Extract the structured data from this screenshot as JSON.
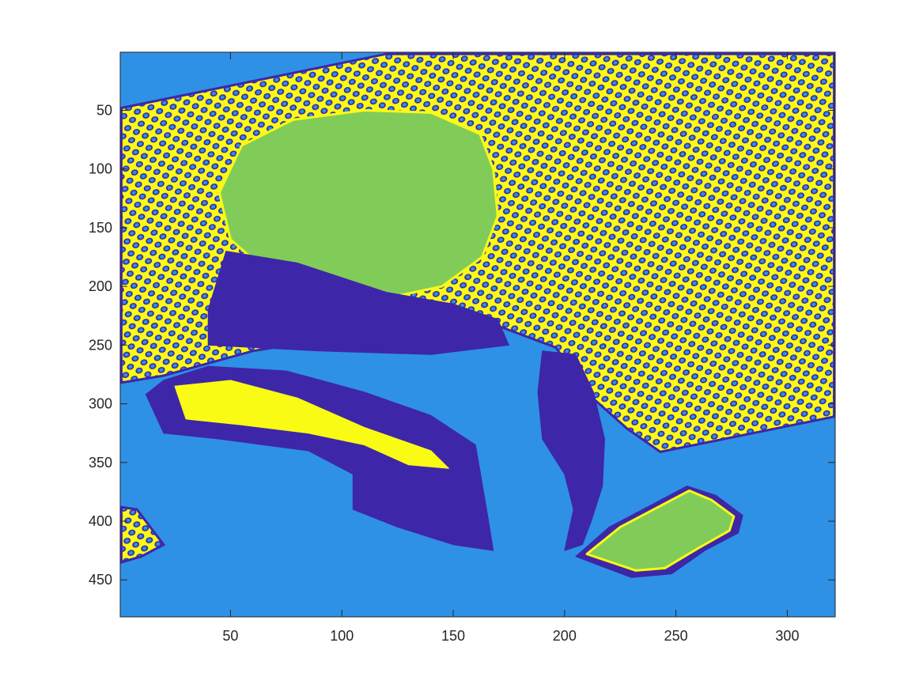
{
  "chart_data": {
    "type": "heatmap",
    "title": "",
    "xlabel": "",
    "ylabel": "",
    "xlim": [
      0.5,
      321.5
    ],
    "ylim": [
      0.5,
      481.5
    ],
    "y_direction": "reversed",
    "grid": false,
    "legend": "none",
    "xticks": [
      50,
      100,
      150,
      200,
      250,
      300
    ],
    "yticks": [
      50,
      100,
      150,
      200,
      250,
      300,
      350,
      400,
      450
    ],
    "colormap": {
      "level_1": "#3e26a8",
      "level_2": "#2e91e5",
      "level_3": "#81cc58",
      "level_4": "#f9fb15"
    },
    "regions": [
      {
        "name": "checkerboard-upper",
        "pattern": "dotted-yellow-blue",
        "polygon": [
          [
            1,
            48
          ],
          [
            120,
            2
          ],
          [
            321,
            2
          ],
          [
            321,
            311
          ],
          [
            243,
            341
          ],
          [
            228,
            321
          ],
          [
            212,
            294
          ],
          [
            196,
            252
          ],
          [
            165,
            230
          ],
          [
            110,
            240
          ],
          [
            60,
            255
          ],
          [
            20,
            276
          ],
          [
            1,
            282
          ]
        ]
      },
      {
        "name": "checkerboard-lower-left",
        "pattern": "dotted-yellow-blue",
        "polygon": [
          [
            1,
            388
          ],
          [
            8,
            390
          ],
          [
            20,
            420
          ],
          [
            10,
            430
          ],
          [
            1,
            435
          ]
        ]
      },
      {
        "name": "face",
        "level": "level_3",
        "polygon": [
          [
            45,
            120
          ],
          [
            55,
            80
          ],
          [
            78,
            58
          ],
          [
            110,
            50
          ],
          [
            140,
            52
          ],
          [
            162,
            70
          ],
          [
            168,
            100
          ],
          [
            170,
            140
          ],
          [
            163,
            175
          ],
          [
            145,
            200
          ],
          [
            120,
            210
          ],
          [
            90,
            205
          ],
          [
            65,
            185
          ],
          [
            50,
            160
          ]
        ]
      },
      {
        "name": "shadow-below-face",
        "level": "level_1",
        "polygon": [
          [
            48,
            170
          ],
          [
            80,
            180
          ],
          [
            120,
            205
          ],
          [
            150,
            215
          ],
          [
            170,
            228
          ],
          [
            175,
            250
          ],
          [
            140,
            258
          ],
          [
            90,
            255
          ],
          [
            40,
            250
          ],
          [
            40,
            220
          ]
        ]
      },
      {
        "name": "arm-shadow",
        "level": "level_1",
        "polygon": [
          [
            12,
            292
          ],
          [
            20,
            280
          ],
          [
            40,
            268
          ],
          [
            75,
            272
          ],
          [
            110,
            290
          ],
          [
            140,
            310
          ],
          [
            160,
            335
          ],
          [
            165,
            390
          ],
          [
            168,
            425
          ],
          [
            150,
            420
          ],
          [
            125,
            405
          ],
          [
            105,
            390
          ],
          [
            105,
            360
          ],
          [
            85,
            340
          ],
          [
            45,
            330
          ],
          [
            20,
            325
          ]
        ]
      },
      {
        "name": "arm-highlight",
        "level": "level_4",
        "polygon": [
          [
            25,
            285
          ],
          [
            50,
            280
          ],
          [
            80,
            295
          ],
          [
            110,
            320
          ],
          [
            140,
            340
          ],
          [
            148,
            355
          ],
          [
            130,
            352
          ],
          [
            110,
            335
          ],
          [
            85,
            325
          ],
          [
            55,
            318
          ],
          [
            30,
            313
          ]
        ]
      },
      {
        "name": "middle-stripe",
        "level": "level_1",
        "polygon": [
          [
            190,
            255
          ],
          [
            205,
            258
          ],
          [
            213,
            290
          ],
          [
            218,
            330
          ],
          [
            217,
            370
          ],
          [
            212,
            400
          ],
          [
            208,
            420
          ],
          [
            200,
            425
          ],
          [
            204,
            390
          ],
          [
            200,
            360
          ],
          [
            190,
            330
          ],
          [
            188,
            290
          ]
        ]
      },
      {
        "name": "hand-outline",
        "level": "level_1",
        "polygon": [
          [
            205,
            430
          ],
          [
            220,
            405
          ],
          [
            240,
            385
          ],
          [
            255,
            370
          ],
          [
            268,
            378
          ],
          [
            280,
            395
          ],
          [
            278,
            410
          ],
          [
            263,
            425
          ],
          [
            248,
            445
          ],
          [
            230,
            448
          ]
        ]
      },
      {
        "name": "hand",
        "level": "level_3",
        "polygon": [
          [
            210,
            428
          ],
          [
            225,
            405
          ],
          [
            242,
            388
          ],
          [
            256,
            374
          ],
          [
            266,
            382
          ],
          [
            276,
            396
          ],
          [
            274,
            408
          ],
          [
            260,
            423
          ],
          [
            245,
            440
          ],
          [
            232,
            442
          ]
        ]
      }
    ]
  }
}
